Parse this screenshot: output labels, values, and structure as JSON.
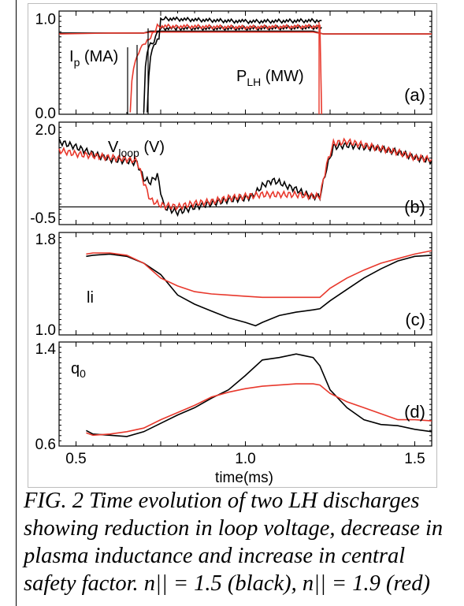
{
  "figure": {
    "caption": "FIG. 2 Time evolution of two LH discharges showing reduction in loop voltage, decrease in plasma inductance and increase in central safety factor. n|| = 1.5 (black), n|| = 1.9 (red)",
    "colors": {
      "series_a": "#000000",
      "series_b": "#e8382c",
      "frame": "#000000"
    }
  },
  "chart_data": [
    {
      "type": "line",
      "panel": "(a)",
      "xlim": [
        0.45,
        1.55
      ],
      "ylim": [
        0,
        1.08
      ],
      "yticks": [
        "0.0",
        "1.0"
      ],
      "labels": {
        "ip": "I",
        "ip_sub": "p",
        "ip_unit": " (MA)",
        "plh": "P",
        "plh_sub": "LH",
        "plh_unit": " (MW)"
      },
      "series": [
        {
          "color": "#000000",
          "kind": "ip",
          "x": [
            0.45,
            0.6,
            0.7,
            0.72,
            1.2,
            1.23,
            1.55
          ],
          "y": [
            0.85,
            0.85,
            0.85,
            0.87,
            0.87,
            0.84,
            0.84
          ]
        },
        {
          "color": "#e8382c",
          "kind": "ip",
          "x": [
            0.45,
            0.6,
            0.7,
            0.72,
            1.2,
            1.23,
            1.55
          ],
          "y": [
            0.84,
            0.85,
            0.85,
            0.86,
            0.86,
            0.84,
            0.84
          ]
        },
        {
          "color": "#000000",
          "kind": "plh",
          "x": [
            0.71,
            0.715,
            0.72,
            0.73,
            0.745,
            0.75,
            0.76,
            1.0,
            1.22,
            1.225
          ],
          "y": [
            0.0,
            0.4,
            0.62,
            0.72,
            0.8,
            0.99,
            1.0,
            0.97,
            0.98,
            0.98
          ]
        },
        {
          "color": "#000000",
          "kind": "plh2",
          "x": [
            0.7,
            0.705,
            0.71,
            0.72,
            0.73,
            0.74,
            0.75,
            0.8,
            1.0,
            1.22,
            1.225
          ],
          "y": [
            0.0,
            0.5,
            0.66,
            0.74,
            0.76,
            0.85,
            0.9,
            0.9,
            0.9,
            0.91,
            0.91
          ]
        },
        {
          "color": "#e8382c",
          "kind": "plh",
          "x": [
            0.66,
            0.665,
            0.67,
            0.68,
            0.69,
            0.7,
            0.72,
            0.74,
            0.8,
            1.0,
            1.22,
            1.225
          ],
          "y": [
            0.0,
            0.35,
            0.5,
            0.6,
            0.7,
            0.72,
            0.8,
            0.92,
            0.92,
            0.91,
            0.92,
            0.0
          ]
        }
      ]
    },
    {
      "type": "line",
      "panel": "(b)",
      "xlim": [
        0.45,
        1.55
      ],
      "ylim": [
        -0.7,
        2.2
      ],
      "yticks": [
        "-0.5",
        "2.0"
      ],
      "labels": {
        "v": "V",
        "v_sub": "loop",
        "v_unit": " (V)"
      },
      "hline": -0.2,
      "series": [
        {
          "color": "#000000",
          "x": [
            0.45,
            0.5,
            0.55,
            0.6,
            0.65,
            0.68,
            0.7,
            0.72,
            0.74,
            0.76,
            0.8,
            0.85,
            0.9,
            0.95,
            1.0,
            1.02,
            1.05,
            1.08,
            1.1,
            1.12,
            1.15,
            1.18,
            1.2,
            1.22,
            1.24,
            1.26,
            1.3,
            1.35,
            1.4,
            1.45,
            1.5,
            1.55
          ],
          "y": [
            1.65,
            1.5,
            1.3,
            1.15,
            1.1,
            1.05,
            0.6,
            0.5,
            0.7,
            -0.2,
            -0.35,
            -0.2,
            -0.1,
            0.0,
            0.05,
            0.1,
            0.4,
            0.55,
            0.5,
            0.4,
            0.3,
            0.15,
            0.1,
            0.1,
            0.9,
            1.5,
            1.55,
            1.5,
            1.45,
            1.35,
            1.2,
            1.1
          ]
        },
        {
          "color": "#e8382c",
          "x": [
            0.45,
            0.5,
            0.55,
            0.6,
            0.65,
            0.68,
            0.7,
            0.72,
            0.75,
            0.8,
            0.85,
            0.9,
            0.95,
            1.0,
            1.05,
            1.1,
            1.15,
            1.2,
            1.22,
            1.24,
            1.26,
            1.3,
            1.35,
            1.4,
            1.45,
            1.5,
            1.55
          ],
          "y": [
            1.4,
            1.3,
            1.25,
            1.2,
            1.15,
            1.1,
            0.5,
            0.0,
            -0.15,
            -0.2,
            -0.1,
            -0.05,
            0.05,
            0.1,
            0.15,
            0.15,
            0.15,
            0.1,
            0.1,
            1.0,
            1.6,
            1.65,
            1.55,
            1.45,
            1.35,
            1.2,
            1.15
          ]
        }
      ]
    },
    {
      "type": "line",
      "panel": "(c)",
      "xlim": [
        0.45,
        1.55
      ],
      "ylim": [
        0.95,
        1.85
      ],
      "yticks": [
        "1.0",
        "1.8"
      ],
      "labels": {
        "li": "li"
      },
      "series": [
        {
          "color": "#000000",
          "x": [
            0.53,
            0.55,
            0.6,
            0.65,
            0.7,
            0.75,
            0.8,
            0.85,
            0.9,
            0.95,
            1.0,
            1.03,
            1.05,
            1.1,
            1.15,
            1.2,
            1.22,
            1.25,
            1.3,
            1.35,
            1.4,
            1.45,
            1.5,
            1.55
          ],
          "y": [
            1.64,
            1.65,
            1.66,
            1.64,
            1.58,
            1.48,
            1.3,
            1.22,
            1.16,
            1.1,
            1.06,
            1.03,
            1.06,
            1.12,
            1.15,
            1.17,
            1.18,
            1.25,
            1.35,
            1.45,
            1.53,
            1.6,
            1.64,
            1.65
          ]
        },
        {
          "color": "#e8382c",
          "x": [
            0.53,
            0.55,
            0.6,
            0.65,
            0.7,
            0.75,
            0.8,
            0.85,
            0.9,
            0.95,
            1.0,
            1.05,
            1.1,
            1.15,
            1.2,
            1.22,
            1.25,
            1.3,
            1.35,
            1.4,
            1.45,
            1.5,
            1.55
          ],
          "y": [
            1.66,
            1.67,
            1.67,
            1.65,
            1.58,
            1.45,
            1.38,
            1.33,
            1.31,
            1.3,
            1.29,
            1.28,
            1.28,
            1.28,
            1.28,
            1.28,
            1.36,
            1.45,
            1.52,
            1.58,
            1.62,
            1.66,
            1.69
          ]
        }
      ]
    },
    {
      "type": "line",
      "panel": "(d)",
      "xlim": [
        0.45,
        1.55
      ],
      "ylim": [
        0.58,
        1.45
      ],
      "yticks": [
        "0.6",
        "1.4"
      ],
      "labels": {
        "q": "q",
        "q_sub": "0"
      },
      "series": [
        {
          "color": "#000000",
          "x": [
            0.53,
            0.55,
            0.6,
            0.65,
            0.7,
            0.75,
            0.8,
            0.85,
            0.9,
            0.95,
            1.0,
            1.05,
            1.1,
            1.15,
            1.2,
            1.22,
            1.25,
            1.3,
            1.35,
            1.4,
            1.45,
            1.5,
            1.55
          ],
          "y": [
            0.71,
            0.68,
            0.67,
            0.66,
            0.7,
            0.77,
            0.84,
            0.9,
            0.98,
            1.05,
            1.17,
            1.3,
            1.32,
            1.35,
            1.32,
            1.25,
            1.05,
            0.9,
            0.8,
            0.76,
            0.75,
            0.72,
            0.7
          ]
        },
        {
          "color": "#e8382c",
          "x": [
            0.53,
            0.55,
            0.6,
            0.65,
            0.7,
            0.75,
            0.8,
            0.85,
            0.9,
            0.95,
            1.0,
            1.05,
            1.1,
            1.15,
            1.2,
            1.22,
            1.25,
            1.3,
            1.35,
            1.4,
            1.45,
            1.5,
            1.55
          ],
          "y": [
            0.69,
            0.67,
            0.68,
            0.7,
            0.73,
            0.8,
            0.86,
            0.92,
            0.99,
            1.03,
            1.06,
            1.08,
            1.09,
            1.1,
            1.1,
            1.09,
            1.02,
            0.95,
            0.9,
            0.85,
            0.8,
            0.8,
            0.79
          ]
        }
      ]
    }
  ],
  "x_axis": {
    "ticks": [
      "0.5",
      "1.0",
      "1.5"
    ],
    "values": [
      0.5,
      1.0,
      1.5
    ],
    "label": "time(ms)"
  }
}
